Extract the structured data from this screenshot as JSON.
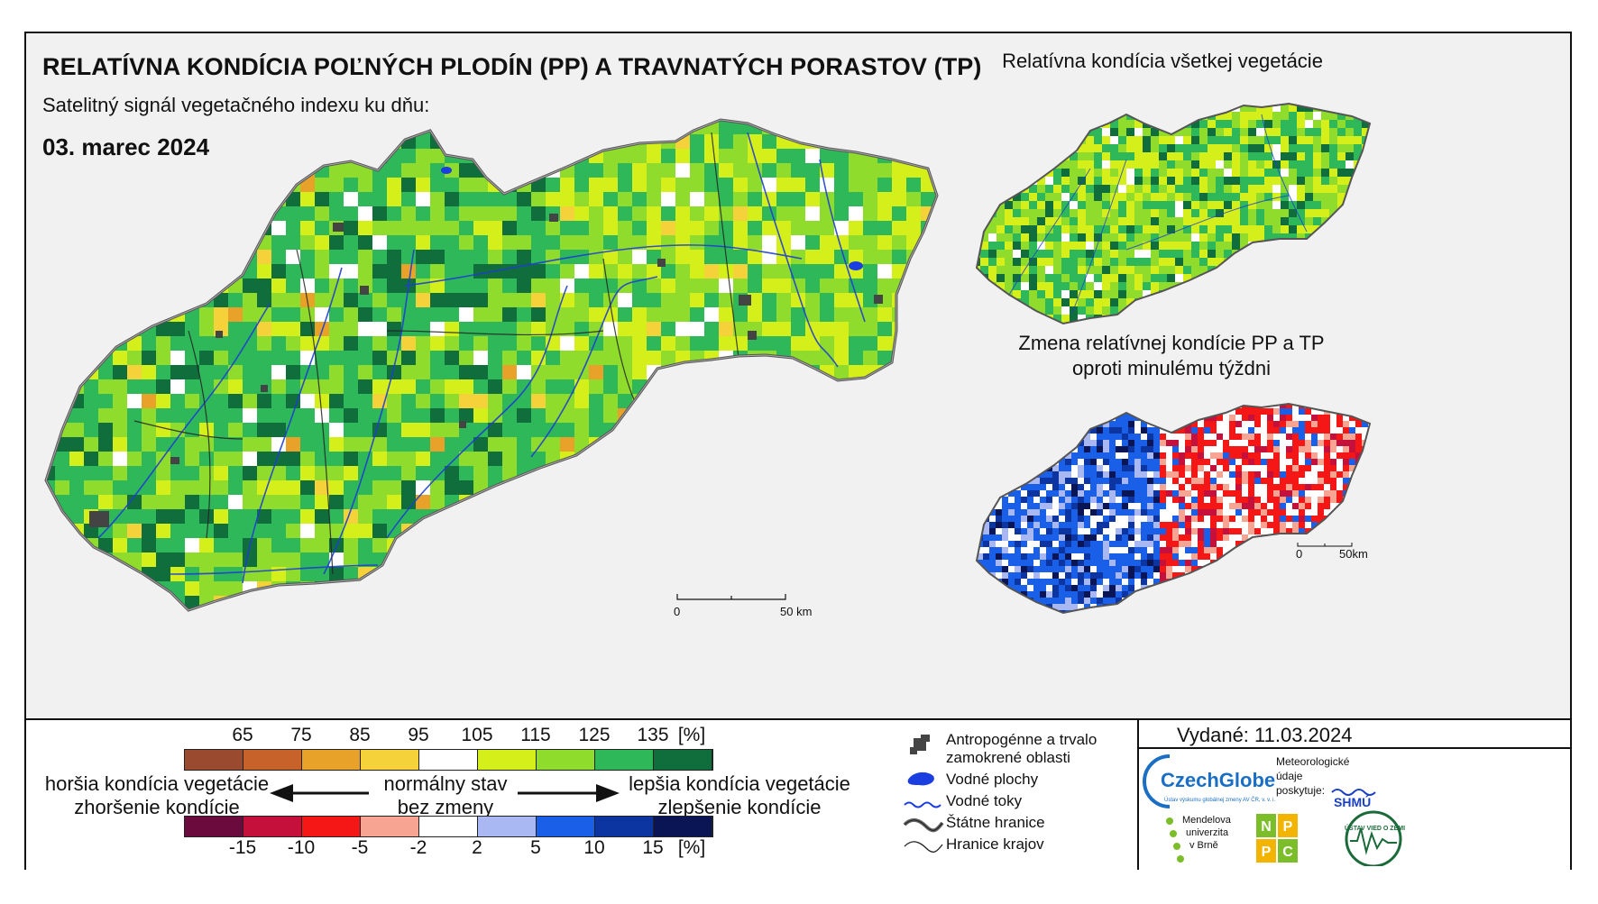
{
  "header": {
    "title": "RELATÍVNA KONDÍCIA POĽNÝCH PLODÍN (PP) A TRAVNATÝCH PORASTOV (TP)",
    "subtitle": "Satelitný signál vegetačného indexu ku dňu:",
    "date": "03. marec 2024"
  },
  "inset_top": {
    "title": "Relatívna kondícia všetkej vegetácie"
  },
  "inset_bottom": {
    "title_line1": "Zmena relatívnej kondície PP a TP",
    "title_line2": "oproti minulému týždni"
  },
  "scalebar_main": {
    "start": "0",
    "end": "50 km"
  },
  "scalebar_inset": {
    "start": "0",
    "end": "50km"
  },
  "legend_condition": {
    "ticks": [
      "65",
      "75",
      "85",
      "95",
      "105",
      "115",
      "125",
      "135",
      "[%]"
    ],
    "colors": [
      "#9a4a2e",
      "#c8622b",
      "#e8a22a",
      "#f5d23a",
      "#ffffff",
      "#d5ef1a",
      "#8fdc2c",
      "#2fb85a",
      "#0f6e3c"
    ]
  },
  "legend_change": {
    "ticks": [
      "-15",
      "-10",
      "-5",
      "-2",
      "2",
      "5",
      "10",
      "15",
      "[%]"
    ],
    "colors": [
      "#6b0a3c",
      "#c4103a",
      "#f51616",
      "#f7a493",
      "#ffffff",
      "#a9b8f2",
      "#1a5fe8",
      "#0d35a2",
      "#0a1555"
    ]
  },
  "arrows": {
    "left_line1": "horšia kondícia vegetácie",
    "left_line2": "zhoršenie kondície",
    "center_line1": "normálny stav",
    "center_line2": "bez zmeny",
    "right_line1": "lepšia kondícia vegetácie",
    "right_line2": "zlepšenie kondície"
  },
  "map_key": {
    "anthropogenic": "Antropogénne a trvalo zamokrené oblasti",
    "water_bodies": "Vodné plochy",
    "streams": "Vodné toky",
    "state_border": "Štátne hranice",
    "regional_border": "Hranice krajov"
  },
  "issued": "Vydané: 11.03.2024",
  "logos": {
    "czechglobe": "CzechGlobe",
    "czechglobe_sub": "Ústav výskumu globálnej zmeny AV ČR, v. v. i.",
    "meteo_line1": "Meteorologické",
    "meteo_line2": "údaje",
    "meteo_line3": "poskytuje:",
    "shmu": "SHMÚ",
    "mendel_line1": "Mendelova",
    "mendel_line2": "univerzita",
    "mendel_line3": "v Brně",
    "nppc": [
      "N",
      "P",
      "P",
      "C"
    ],
    "uvz": "ÚSTAV VIED O ZEMI"
  }
}
